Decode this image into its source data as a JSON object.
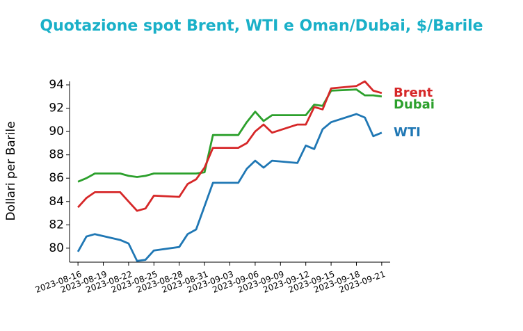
{
  "chart_data": {
    "type": "line",
    "title": "Quotazione spot Brent, WTI e Oman/Dubai, $/Barile",
    "y_label": "Dollari per Barile",
    "x": [
      "2023-08-16",
      "2023-08-17",
      "2023-08-18",
      "2023-08-21",
      "2023-08-22",
      "2023-08-23",
      "2023-08-24",
      "2023-08-25",
      "2023-08-28",
      "2023-08-29",
      "2023-08-30",
      "2023-08-31",
      "2023-09-01",
      "2023-09-04",
      "2023-09-05",
      "2023-09-06",
      "2023-09-07",
      "2023-09-08",
      "2023-09-11",
      "2023-09-12",
      "2023-09-13",
      "2023-09-14",
      "2023-09-15",
      "2023-09-18",
      "2023-09-19",
      "2023-09-20",
      "2023-09-21"
    ],
    "series": [
      {
        "name": "Dubai",
        "color": "#2ca02c",
        "values": [
          85.7,
          86.0,
          86.4,
          86.4,
          86.2,
          86.1,
          86.2,
          86.4,
          86.4,
          86.4,
          86.4,
          86.5,
          89.7,
          89.7,
          90.8,
          91.7,
          90.9,
          91.4,
          91.4,
          91.4,
          92.3,
          92.2,
          93.5,
          93.6,
          93.1,
          93.1,
          93.0
        ]
      },
      {
        "name": "Brent",
        "color": "#d62728",
        "values": [
          83.5,
          84.3,
          84.8,
          84.8,
          84.0,
          83.2,
          83.4,
          84.5,
          84.4,
          85.5,
          85.9,
          86.9,
          88.6,
          88.6,
          89.0,
          90.0,
          90.6,
          89.9,
          90.6,
          90.6,
          92.1,
          91.9,
          93.7,
          93.9,
          94.3,
          93.5,
          93.3
        ]
      },
      {
        "name": "WTI",
        "color": "#1f77b4",
        "values": [
          79.7,
          81.0,
          81.2,
          80.7,
          80.4,
          78.9,
          79.0,
          79.8,
          80.1,
          81.2,
          81.6,
          83.6,
          85.6,
          85.6,
          86.8,
          87.5,
          86.9,
          87.5,
          87.3,
          88.8,
          88.5,
          90.2,
          90.8,
          91.5,
          91.2,
          89.6,
          89.9
        ]
      }
    ],
    "xlim": [
      "2023-08-15",
      "2023-09-22"
    ],
    "xticks": [
      "2023-08-16",
      "2023-08-19",
      "2023-08-22",
      "2023-08-25",
      "2023-08-28",
      "2023-08-31",
      "2023-09-03",
      "2023-09-06",
      "2023-09-09",
      "2023-09-12",
      "2023-09-15",
      "2023-09-18",
      "2023-09-21"
    ],
    "ylim": [
      78.8,
      94.3
    ],
    "yticks": [
      80,
      82,
      84,
      86,
      88,
      90,
      92,
      94
    ],
    "grid": false,
    "title_color": "#1ab0c8"
  }
}
